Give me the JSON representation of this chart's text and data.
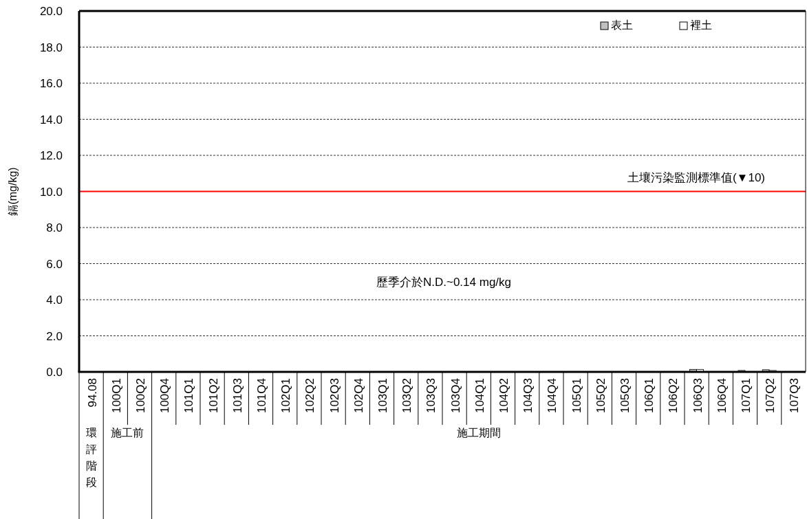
{
  "chart_data": {
    "type": "bar",
    "ylabel": "鎘(mg/kg)",
    "categories": [
      "94.08",
      "100Q1",
      "100Q2",
      "100Q4",
      "101Q1",
      "101Q2",
      "101Q3",
      "101Q4",
      "102Q1",
      "102Q2",
      "102Q3",
      "102Q4",
      "103Q1",
      "103Q2",
      "103Q3",
      "103Q4",
      "104Q1",
      "104Q2",
      "104Q3",
      "104Q4",
      "105Q1",
      "105Q2",
      "105Q3",
      "106Q1",
      "106Q2",
      "106Q3",
      "106Q4",
      "107Q1",
      "107Q2",
      "107Q3"
    ],
    "series": [
      {
        "name": "表土",
        "color": "#c0c0c0",
        "values": [
          null,
          null,
          null,
          null,
          null,
          null,
          null,
          null,
          null,
          null,
          null,
          null,
          null,
          null,
          null,
          null,
          null,
          null,
          null,
          null,
          null,
          null,
          null,
          null,
          null,
          0.14,
          null,
          0.08,
          0.12,
          null
        ]
      },
      {
        "name": "裡土",
        "color": "#ffffff",
        "values": [
          null,
          null,
          null,
          null,
          null,
          null,
          null,
          null,
          null,
          null,
          null,
          null,
          null,
          null,
          null,
          null,
          null,
          null,
          null,
          null,
          null,
          null,
          null,
          null,
          null,
          0.14,
          null,
          null,
          0.08,
          null
        ]
      }
    ],
    "ylim": [
      0,
      20
    ],
    "yticks": [
      {
        "value": 0,
        "label": "0.0"
      },
      {
        "value": 2,
        "label": "2.0"
      },
      {
        "value": 4,
        "label": "4.0"
      },
      {
        "value": 6,
        "label": "6.0"
      },
      {
        "value": 8,
        "label": "8.0"
      },
      {
        "value": 10,
        "label": "10.0"
      },
      {
        "value": 12,
        "label": "12.0"
      },
      {
        "value": 14,
        "label": "14.0"
      },
      {
        "value": 16,
        "label": "16.0"
      },
      {
        "value": 18,
        "label": "18.0"
      },
      {
        "value": 20,
        "label": "20.0"
      }
    ],
    "grid": "y",
    "legend": "top right",
    "ref_lines": [
      {
        "axis": "y",
        "value": 10,
        "label": "土壤污染監測標準值(▼10)",
        "color": "#ff0000"
      }
    ],
    "annotations": [
      "歷季介於N.D.~0.14 mg/kg",
      "環評階段",
      "施工前",
      "施工期間"
    ]
  }
}
